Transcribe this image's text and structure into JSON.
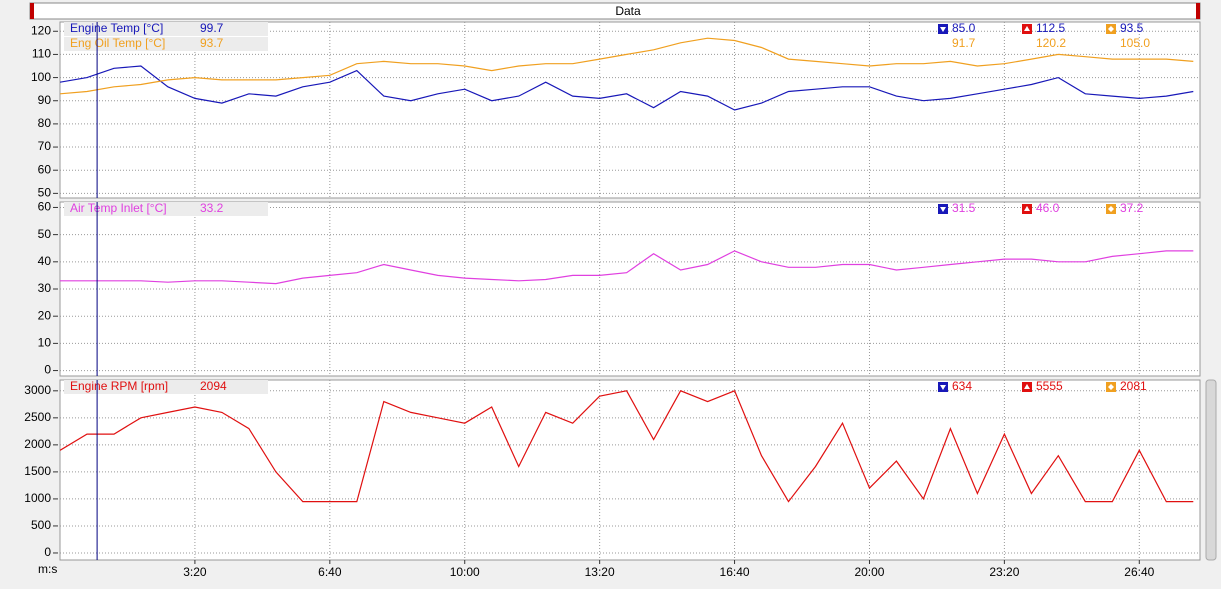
{
  "header": {
    "title": "Data"
  },
  "cursor_x": 55,
  "chart_data": [
    {
      "type": "line",
      "xlim": [
        0,
        1690
      ],
      "ylim": [
        48,
        124
      ],
      "yticks": [
        50,
        60,
        70,
        80,
        90,
        100,
        110,
        120
      ],
      "x": [
        0,
        40,
        80,
        120,
        160,
        200,
        240,
        280,
        320,
        360,
        400,
        440,
        480,
        520,
        560,
        600,
        640,
        680,
        720,
        760,
        800,
        840,
        880,
        920,
        960,
        1000,
        1040,
        1080,
        1120,
        1160,
        1200,
        1240,
        1280,
        1320,
        1360,
        1400,
        1440,
        1480,
        1520,
        1560,
        1600,
        1640,
        1680
      ],
      "series": [
        {
          "name": "Engine Temp [°C]",
          "color": "#1818b8",
          "cursor_value": 99.7,
          "min": {
            "value": 85,
            "label": "85.0"
          },
          "max": 112.5,
          "avg": 93.5,
          "values": [
            98,
            100,
            104,
            105,
            96,
            91,
            89,
            93,
            92,
            96,
            98,
            103,
            92,
            90,
            93,
            95,
            90,
            92,
            98,
            92,
            91,
            93,
            87,
            94,
            92,
            86,
            89,
            94,
            95,
            96,
            96,
            92,
            90,
            91,
            93,
            95,
            97,
            100,
            93,
            92,
            91,
            92,
            94
          ]
        },
        {
          "name": "Eng Oil Temp [°C]",
          "color": "#f0a020",
          "cursor_value": 93.7,
          "min": 91.7,
          "max": 120.2,
          "avg": {
            "value": 105,
            "label": "105.0"
          },
          "values": [
            93,
            94,
            96,
            97,
            99,
            100,
            99,
            99,
            99,
            100,
            101,
            106,
            107,
            106,
            106,
            105,
            103,
            105,
            106,
            106,
            108,
            110,
            112,
            115,
            117,
            116,
            113,
            108,
            107,
            106,
            105,
            106,
            106,
            107,
            105,
            106,
            108,
            110,
            109,
            108,
            108,
            108,
            107
          ]
        }
      ]
    },
    {
      "type": "line",
      "xlim": [
        0,
        1690
      ],
      "ylim": [
        -2,
        62
      ],
      "yticks": [
        0,
        10,
        20,
        30,
        40,
        50,
        60
      ],
      "x": [
        0,
        40,
        80,
        120,
        160,
        200,
        240,
        280,
        320,
        360,
        400,
        440,
        480,
        520,
        560,
        600,
        640,
        680,
        720,
        760,
        800,
        840,
        880,
        920,
        960,
        1000,
        1040,
        1080,
        1120,
        1160,
        1200,
        1240,
        1280,
        1320,
        1360,
        1400,
        1440,
        1480,
        1520,
        1560,
        1600,
        1640,
        1680
      ],
      "series": [
        {
          "name": "Air Temp Inlet [°C]",
          "color": "#e040e0",
          "cursor_value": 33.2,
          "min": 31.5,
          "max": {
            "value": 46,
            "label": "46.0"
          },
          "avg": 37.2,
          "values": [
            33,
            33,
            33,
            33,
            32.5,
            33,
            33,
            32.5,
            32,
            34,
            35,
            36,
            39,
            37,
            35,
            34,
            33.5,
            33,
            33.5,
            35,
            35,
            36,
            43,
            37,
            39,
            44,
            40,
            38,
            38,
            39,
            39,
            37,
            38,
            39,
            40,
            41,
            41,
            40,
            40,
            42,
            43,
            44,
            44
          ]
        }
      ]
    },
    {
      "type": "line",
      "xlim": [
        0,
        1690
      ],
      "ylim": [
        -130,
        3200
      ],
      "yticks": [
        0,
        500,
        1000,
        1500,
        2000,
        2500,
        3000
      ],
      "xlabel": "m:s",
      "xticks": [
        {
          "value": 200,
          "label": "3:20"
        },
        {
          "value": 400,
          "label": "6:40"
        },
        {
          "value": 600,
          "label": "10:00"
        },
        {
          "value": 800,
          "label": "13:20"
        },
        {
          "value": 1000,
          "label": "16:40"
        },
        {
          "value": 1200,
          "label": "20:00"
        },
        {
          "value": 1400,
          "label": "23:20"
        },
        {
          "value": 1600,
          "label": "26:40"
        }
      ],
      "x": [
        0,
        40,
        80,
        120,
        160,
        200,
        240,
        280,
        320,
        360,
        400,
        440,
        480,
        520,
        560,
        600,
        640,
        680,
        720,
        760,
        800,
        840,
        880,
        920,
        960,
        1000,
        1040,
        1080,
        1120,
        1160,
        1200,
        1240,
        1280,
        1320,
        1360,
        1400,
        1440,
        1480,
        1520,
        1560,
        1600,
        1640,
        1680
      ],
      "series": [
        {
          "name": "Engine RPM [rpm]",
          "color": "#e01010",
          "cursor_value": 2094,
          "min": 634,
          "max": 5555,
          "avg": 2081,
          "values": [
            1900,
            2200,
            2200,
            2500,
            2600,
            2700,
            2600,
            2300,
            1500,
            950,
            950,
            950,
            2800,
            2600,
            2500,
            2400,
            2700,
            1600,
            2600,
            2400,
            2900,
            3000,
            2100,
            3000,
            2800,
            3000,
            1800,
            950,
            1600,
            2400,
            1200,
            1700,
            1000,
            2300,
            1100,
            2200,
            1100,
            1800,
            950,
            950,
            1900,
            950,
            950
          ]
        }
      ]
    }
  ]
}
